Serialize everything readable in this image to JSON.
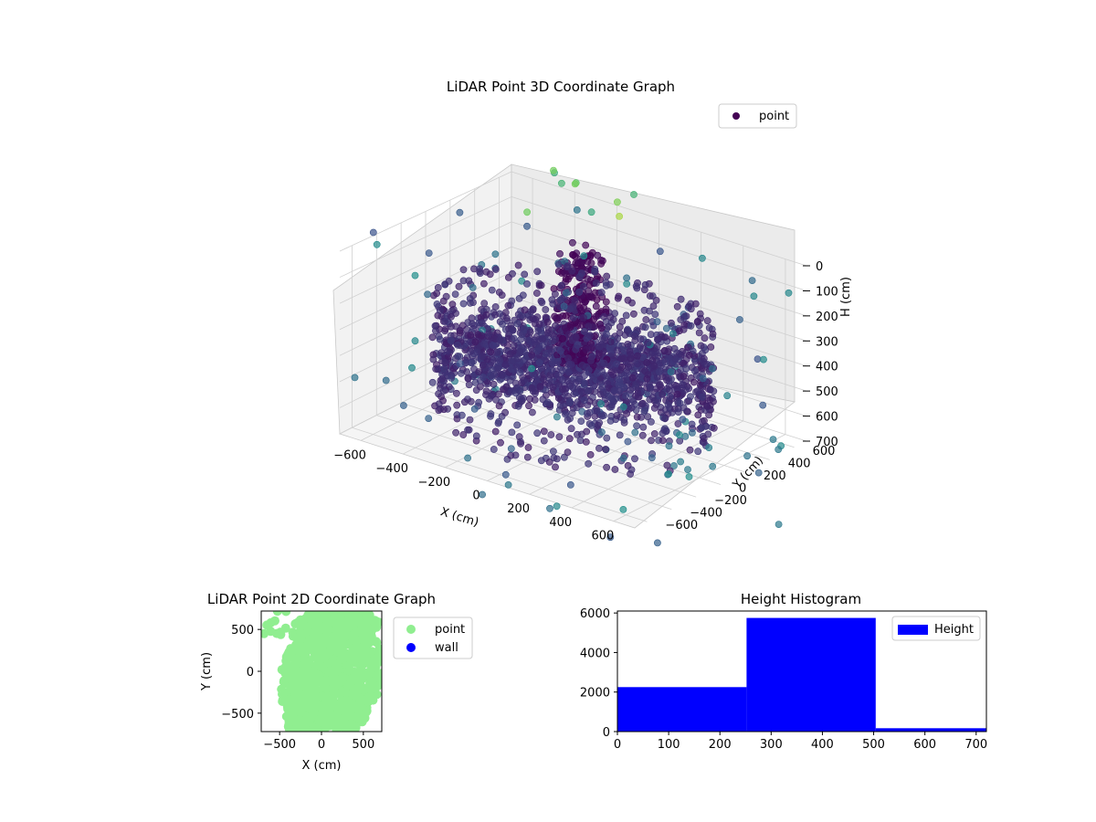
{
  "chart_data": [
    {
      "type": "scatter3d",
      "title": "LiDAR Point 3D Coordinate Graph",
      "xlabel": "X (cm)",
      "ylabel": "Y (cm)",
      "zlabel": "H (cm)",
      "xlim": [
        -700,
        700
      ],
      "ylim": [
        -700,
        700
      ],
      "zlim": [
        700,
        0
      ],
      "xticks": [
        -600,
        -400,
        -200,
        0,
        200,
        400,
        600
      ],
      "yticks": [
        -600,
        -400,
        -200,
        0,
        200,
        400,
        600
      ],
      "zticks": [
        0,
        100,
        200,
        300,
        400,
        500,
        600,
        700
      ],
      "legend": {
        "placement": "top-right",
        "entries": [
          "point"
        ]
      },
      "colormap": "viridis",
      "color_by": "height",
      "grid": true,
      "series": [
        {
          "name": "point",
          "color": "#440154",
          "description_points": "dense circular wall ring of radius ~550 at heights 200-650, a dense vertical column near (-150, 350), scattered outliers above and below the ring"
        }
      ]
    },
    {
      "type": "scatter",
      "title": "LiDAR Point 2D Coordinate Graph",
      "xlabel": "X (cm)",
      "ylabel": "Y (cm)",
      "xlim": [
        -720,
        720
      ],
      "ylim": [
        -720,
        720
      ],
      "xticks": [
        -500,
        0,
        500
      ],
      "yticks": [
        -500,
        0,
        500
      ],
      "legend": {
        "placement": "outside-right",
        "entries": [
          "point",
          "wall"
        ]
      },
      "series": [
        {
          "name": "point",
          "color": "#90ee90"
        },
        {
          "name": "wall",
          "color": "#0000ff"
        }
      ]
    },
    {
      "type": "bar",
      "title": "Height Histogram",
      "xlabel": "",
      "ylabel": "",
      "xlim": [
        0,
        720
      ],
      "ylim": [
        0,
        6100
      ],
      "xticks": [
        0,
        100,
        200,
        300,
        400,
        500,
        600,
        700
      ],
      "yticks": [
        0,
        2000,
        4000,
        6000
      ],
      "legend": {
        "placement": "top-right",
        "entries": [
          "Height"
        ]
      },
      "bins": [
        {
          "from": 0,
          "to": 252,
          "count": 2250
        },
        {
          "from": 252,
          "to": 504,
          "count": 5750
        },
        {
          "from": 504,
          "to": 720,
          "count": 170
        }
      ],
      "series": [
        {
          "name": "Height",
          "color": "#0000ff"
        }
      ]
    }
  ]
}
